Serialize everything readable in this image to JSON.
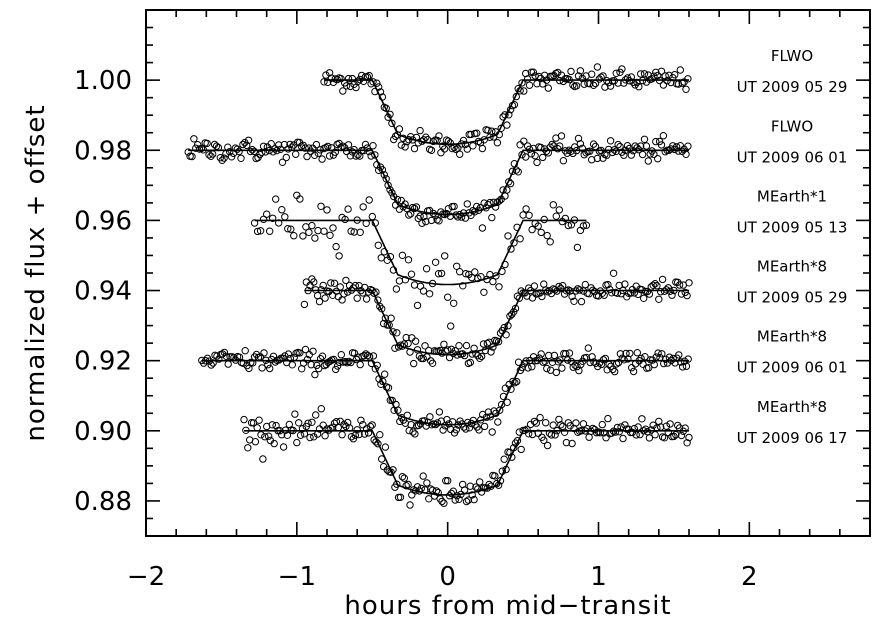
{
  "chart_data": {
    "type": "scatter",
    "title": "",
    "xlabel": "hours from mid−transit",
    "ylabel": "normalized flux + offset",
    "xlim": [
      -2,
      2.8
    ],
    "ylim": [
      0.87,
      1.02
    ],
    "x_ticks": [
      -2,
      -1,
      0,
      1,
      2
    ],
    "x_tick_labels": [
      "−2",
      "−1",
      "0",
      "1",
      "2"
    ],
    "y_ticks": [
      0.88,
      0.9,
      0.92,
      0.94,
      0.96,
      0.98,
      1.0
    ],
    "y_tick_labels": [
      "0.88",
      "0.90",
      "0.92",
      "0.94",
      "0.96",
      "0.98",
      "1.00"
    ],
    "transit_model": {
      "depth": 0.0155,
      "ingress_start": -0.5,
      "full_start": -0.33,
      "full_end": 0.33,
      "egress_end": 0.5
    },
    "series": [
      {
        "observatory": "FLWO",
        "date": "UT 2009 05 29",
        "offset": 1.0,
        "x_start": -0.82,
        "x_end": 1.6,
        "step": 0.0125,
        "scatter": 0.0015,
        "model_x_start": -0.82,
        "model_x_end": 1.6
      },
      {
        "observatory": "FLWO",
        "date": "UT 2009 06 01",
        "offset": 0.98,
        "x_start": -1.72,
        "x_end": 1.6,
        "step": 0.0125,
        "scatter": 0.0015,
        "model_x_start": -1.72,
        "model_x_end": 1.6
      },
      {
        "observatory": "MEarth*1",
        "date": "UT 2009 05 13",
        "offset": 0.96,
        "x_start": -1.28,
        "x_end": 0.92,
        "step": 0.02,
        "scatter": 0.0035,
        "model_x_start": -1.28,
        "model_x_end": 0.92
      },
      {
        "observatory": "MEarth*8",
        "date": "UT 2009 05 29",
        "offset": 0.94,
        "x_start": -0.95,
        "x_end": 1.6,
        "step": 0.0125,
        "scatter": 0.0015,
        "model_x_start": -0.95,
        "model_x_end": 1.6
      },
      {
        "observatory": "MEarth*8",
        "date": "UT 2009 06 01",
        "offset": 0.92,
        "x_start": -1.63,
        "x_end": 1.6,
        "step": 0.0125,
        "scatter": 0.0015,
        "model_x_start": -1.63,
        "model_x_end": 1.6
      },
      {
        "observatory": "MEarth*8",
        "date": "UT 2009 06 17",
        "offset": 0.9,
        "x_start": -1.35,
        "x_end": 1.6,
        "step": 0.0125,
        "scatter": 0.002,
        "model_x_start": -1.35,
        "model_x_end": 1.6
      }
    ],
    "grid": false,
    "legend": "none"
  }
}
